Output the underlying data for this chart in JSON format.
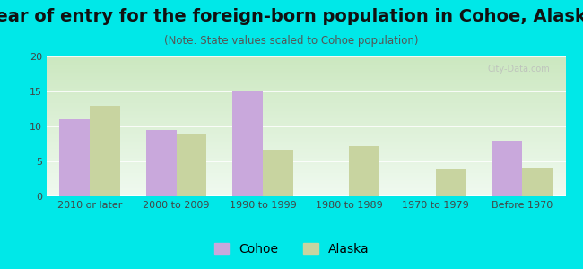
{
  "title": "Year of entry for the foreign-born population in Cohoe, Alaska",
  "subtitle": "(Note: State values scaled to Cohoe population)",
  "categories": [
    "2010 or later",
    "2000 to 2009",
    "1990 to 1999",
    "1980 to 1989",
    "1970 to 1979",
    "Before 1970"
  ],
  "cohoe_values": [
    11,
    9.5,
    15,
    0,
    0,
    8
  ],
  "alaska_values": [
    13,
    9,
    6.7,
    7.2,
    4,
    4.1
  ],
  "cohoe_color": "#c9a8dc",
  "alaska_color": "#c8d4a0",
  "ylim": [
    0,
    20
  ],
  "yticks": [
    0,
    5,
    10,
    15,
    20
  ],
  "bar_width": 0.35,
  "fig_bg_color": "#00e8e8",
  "title_fontsize": 14,
  "subtitle_fontsize": 8.5,
  "tick_fontsize": 8,
  "legend_fontsize": 10,
  "watermark": "City-Data.com"
}
